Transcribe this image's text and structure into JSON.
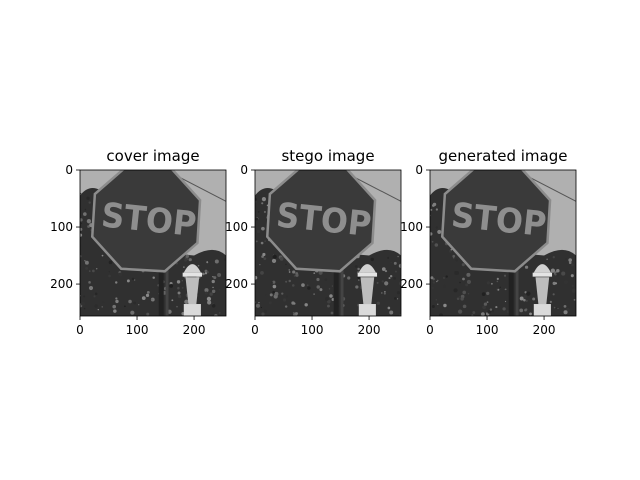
{
  "chart_data": [
    {
      "type": "image",
      "title": "cover image",
      "image_size": [
        256,
        256
      ],
      "xlim": [
        0,
        256
      ],
      "ylim": [
        256,
        0
      ],
      "xticks": [
        0,
        100,
        200
      ],
      "yticks": [
        0,
        100,
        200
      ],
      "content": "grayscale photo, STOP sign on pole in front of trees with a sky background"
    },
    {
      "type": "image",
      "title": "stego image",
      "image_size": [
        256,
        256
      ],
      "xlim": [
        0,
        256
      ],
      "ylim": [
        256,
        0
      ],
      "xticks": [
        0,
        100,
        200
      ],
      "yticks": [
        0,
        100,
        200
      ],
      "content": "grayscale photo, STOP sign on pole in front of trees with a sky background"
    },
    {
      "type": "image",
      "title": "generated image",
      "image_size": [
        256,
        256
      ],
      "xlim": [
        0,
        256
      ],
      "ylim": [
        256,
        0
      ],
      "xticks": [
        0,
        100,
        200
      ],
      "yticks": [
        0,
        100,
        200
      ],
      "content": "grayscale photo, STOP sign on pole in front of trees with a sky background"
    }
  ],
  "sign_text": "STOP",
  "colors": {
    "sky": "#b0b0b0",
    "trees": "#303030",
    "sign_face": "#3a3a3a",
    "sign_border": "#8c8c8c",
    "sign_text": "#8e8e8e",
    "pole": "#222222",
    "ornament": "#d2d2d2"
  }
}
